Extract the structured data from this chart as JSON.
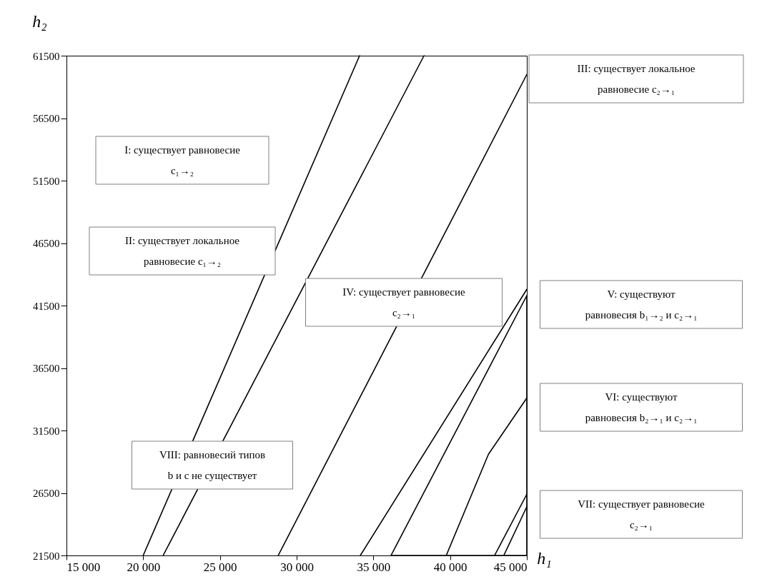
{
  "chart_data": {
    "type": "line",
    "xlabel": "h₁",
    "ylabel": "h₂",
    "xlim": [
      15000,
      45000
    ],
    "ylim": [
      21500,
      61500
    ],
    "xticks": [
      {
        "value": 15000,
        "label": "15 000"
      },
      {
        "value": 20000,
        "label": "20 000"
      },
      {
        "value": 25000,
        "label": "25 000"
      },
      {
        "value": 30000,
        "label": "30 000"
      },
      {
        "value": 35000,
        "label": "35 000"
      },
      {
        "value": 40000,
        "label": "40 000"
      },
      {
        "value": 45000,
        "label": "45 000"
      }
    ],
    "yticks": [
      21500,
      26500,
      31500,
      36500,
      41500,
      46500,
      51500,
      56500,
      61500
    ],
    "grid": false,
    "legend": false,
    "line_style": "solid",
    "series": [
      {
        "color": "#000000",
        "x": [
          20000,
          34100
        ],
        "values": [
          21500,
          61500
        ]
      },
      {
        "color": "#000000",
        "x": [
          21300,
          38300
        ],
        "values": [
          21500,
          61500
        ]
      },
      {
        "color": "#000000",
        "x": [
          28800,
          45000
        ],
        "values": [
          21500,
          60000
        ]
      },
      {
        "color": "#000000",
        "x": [
          34150,
          45000
        ],
        "values": [
          21500,
          42800
        ]
      },
      {
        "color": "#000000",
        "x": [
          36150,
          45000
        ],
        "values": [
          21500,
          42300
        ]
      },
      {
        "color": "#000000",
        "x": [
          45000,
          45000,
          36150
        ],
        "values": [
          42300,
          21500,
          21500
        ]
      },
      {
        "color": "#000000",
        "x": [
          39750,
          42500,
          45000
        ],
        "values": [
          21500,
          29600,
          34100
        ]
      },
      {
        "color": "#000000",
        "x": [
          42900,
          45000
        ],
        "values": [
          21500,
          26400
        ]
      },
      {
        "color": "#000000",
        "x": [
          43500,
          45000
        ],
        "values": [
          21500,
          25400
        ]
      }
    ],
    "annotations": [
      "I: существует равновесие\nc₁→₂",
      "II: существует локальное\nравновесие  c₁→₂",
      "III: существует локальное\nравновесие  c₂→₁",
      "IV: существует равновесие\nc₂→₁",
      "V: существуют\nравновесия  b₁→₂  и  c₂→₁",
      "VI: существуют\nравновесия  b₂→₁  и  c₂→₁",
      "VII: существует равновесие\nc₂→₁",
      "VIII: равновесий типов\nb и c не существует"
    ]
  }
}
